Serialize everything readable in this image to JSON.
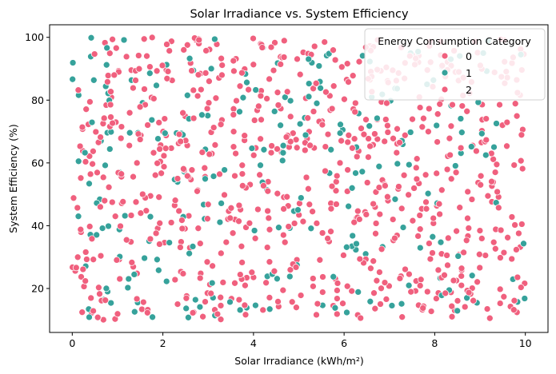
{
  "chart_data": {
    "type": "scatter",
    "title": "Solar Irradiance vs. System Efficiency",
    "xlabel": "Solar Irradiance (kWh/m²)",
    "ylabel": "System Efficiency (%)",
    "xlim": [
      -0.5,
      10.5
    ],
    "ylim": [
      6,
      104
    ],
    "xticks": [
      0,
      2,
      4,
      6,
      8,
      10
    ],
    "yticks": [
      20,
      40,
      60,
      80,
      100
    ],
    "grid": false,
    "legend": {
      "title": "Energy Consumption Category",
      "placement": "top-right",
      "entries": [
        "0",
        "1",
        "2"
      ]
    },
    "series": [
      {
        "name": "0",
        "color": "#f0607e",
        "n_points": 340,
        "seed": 11
      },
      {
        "name": "1",
        "color": "#36a29b",
        "n_points": 230,
        "seed": 23
      },
      {
        "name": "2",
        "color": "#f0607e",
        "n_points": 430,
        "seed": 37
      }
    ],
    "distribution": {
      "x_range": [
        0,
        10
      ],
      "y_range": [
        10,
        100
      ],
      "kind": "uniform"
    }
  }
}
